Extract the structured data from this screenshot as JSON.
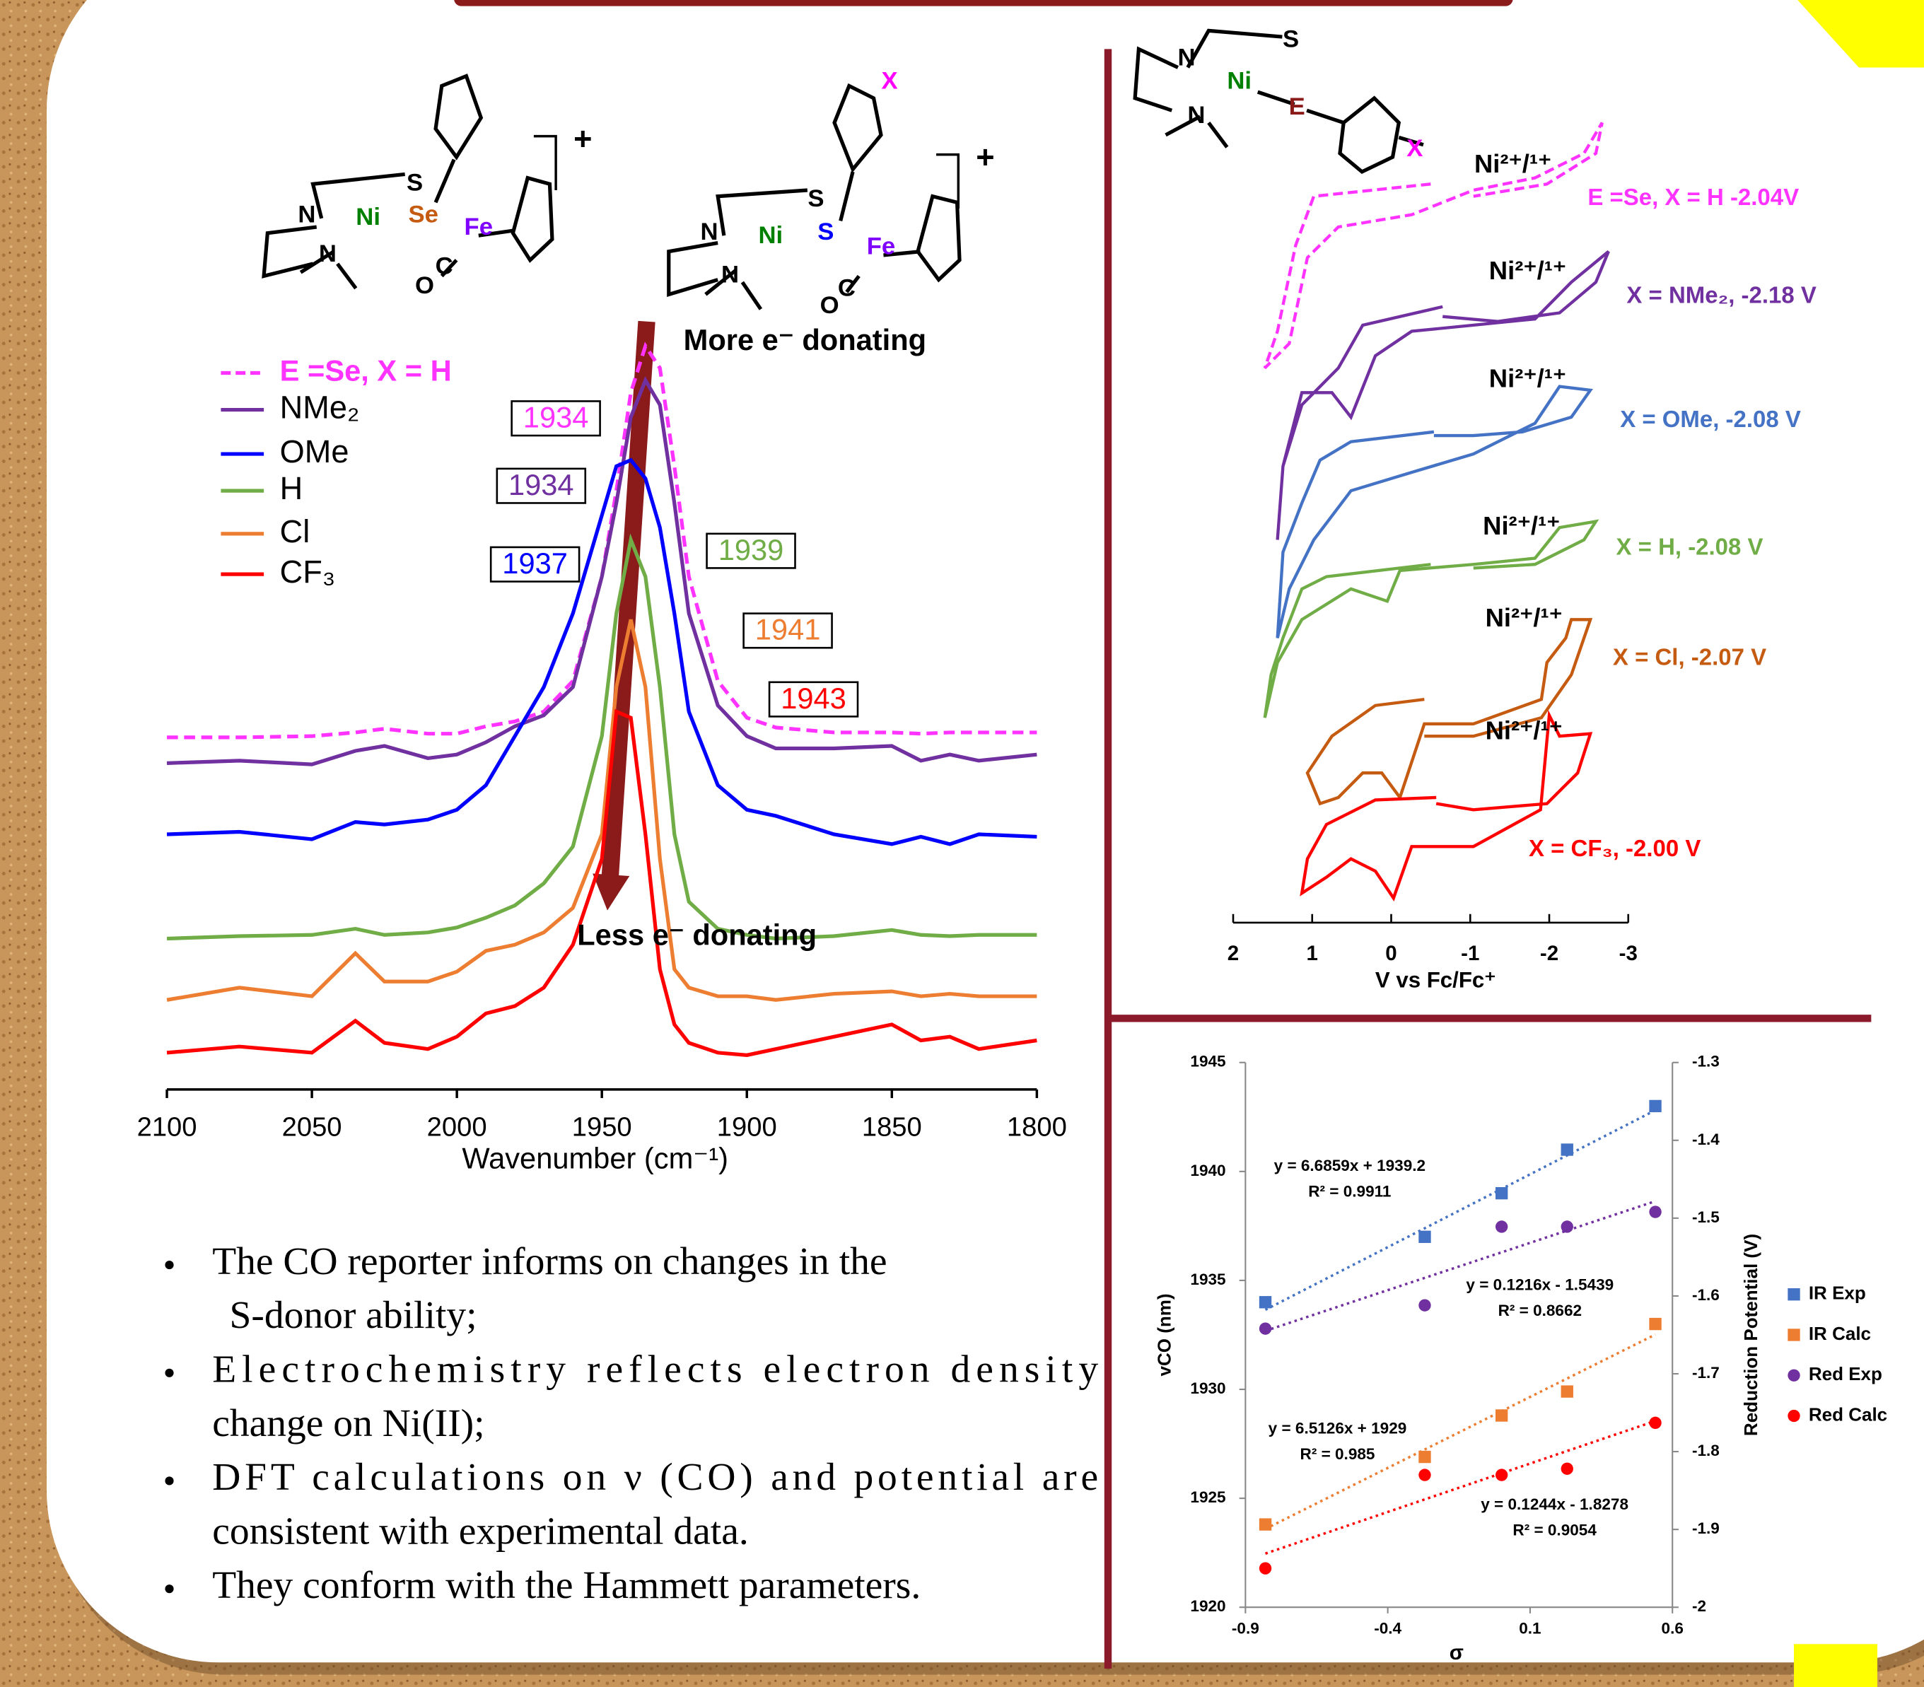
{
  "structures": [
    {
      "atoms": [
        "N",
        "Ni",
        "Se",
        "Fe",
        "S",
        "N",
        "C",
        "O"
      ],
      "charge": "+"
    },
    {
      "atoms": [
        "N",
        "Ni",
        "S",
        "Fe",
        "S",
        "N",
        "C",
        "O",
        "X"
      ],
      "charge": "+"
    },
    {
      "atoms": [
        "N",
        "Ni",
        "S",
        "E",
        "N",
        "X"
      ]
    }
  ],
  "bullets": [
    [
      "The CO reporter informs on changes in the",
      "S-donor ability;"
    ],
    [
      "Electrochemistry reflects electron density",
      "change on Ni(II);"
    ],
    [
      "DFT calculations on ν (CO) and potential are",
      "consistent with experimental data."
    ],
    [
      "They conform with  the Hammett parameters."
    ]
  ],
  "chart_data": [
    {
      "type": "line",
      "xlabel": "Wavenumber (cm⁻¹)",
      "annotations": [
        "More e⁻ donating",
        "Less e⁻ donating"
      ],
      "x": [
        2100,
        2075,
        2050,
        2035,
        2025,
        2010,
        2000,
        1990,
        1980,
        1970,
        1960,
        1950,
        1945,
        1940,
        1935,
        1930,
        1925,
        1920,
        1910,
        1900,
        1890,
        1870,
        1850,
        1840,
        1830,
        1820,
        1800
      ],
      "xlim": [
        2100,
        1800
      ],
      "xticks": [
        2100,
        2050,
        2000,
        1950,
        1900,
        1850,
        1800
      ],
      "ylim": [
        0,
        628
      ],
      "series": [
        {
          "name": "E =Se, X = H",
          "color": "#ff33ff",
          "dashed": true,
          "peak": 1934,
          "values": [
            287,
            287,
            288,
            291,
            294,
            290,
            290,
            296,
            300,
            308,
            333,
            418,
            488,
            568,
            606,
            588,
            508,
            418,
            333,
            303,
            295,
            291,
            291,
            290,
            291,
            291,
            291
          ]
        },
        {
          "name": "NMe₂",
          "color": "#7030a0",
          "peak": 1934,
          "values": [
            266,
            268,
            265,
            276,
            280,
            270,
            273,
            283,
            296,
            305,
            328,
            418,
            478,
            548,
            578,
            558,
            478,
            388,
            313,
            288,
            278,
            278,
            280,
            268,
            273,
            268,
            273
          ]
        },
        {
          "name": "OMe",
          "color": "#0000ff",
          "peak": 1937,
          "values": [
            208,
            210,
            204,
            218,
            216,
            220,
            228,
            248,
            288,
            328,
            388,
            468,
            508,
            513,
            498,
            458,
            388,
            308,
            248,
            228,
            223,
            208,
            200,
            206,
            200,
            208,
            206
          ]
        },
        {
          "name": "H",
          "color": "#70ad47",
          "peak": 1939,
          "values": [
            123,
            125,
            126,
            131,
            126,
            128,
            132,
            140,
            150,
            168,
            198,
            288,
            388,
            448,
            418,
            328,
            208,
            153,
            131,
            126,
            123,
            125,
            130,
            126,
            125,
            126,
            126
          ]
        },
        {
          "name": "Cl",
          "color": "#ed7d31",
          "peak": 1941,
          "values": [
            73,
            83,
            76,
            111,
            88,
            88,
            96,
            113,
            118,
            128,
            148,
            208,
            328,
            383,
            328,
            188,
            98,
            83,
            76,
            76,
            73,
            78,
            80,
            76,
            78,
            76,
            76
          ]
        },
        {
          "name": "CF₃",
          "color": "#ff0000",
          "peak": 1943,
          "values": [
            30,
            35,
            30,
            56,
            38,
            33,
            43,
            62,
            68,
            83,
            118,
            188,
            308,
            303,
            208,
            98,
            53,
            38,
            30,
            28,
            33,
            43,
            53,
            40,
            43,
            33,
            40
          ]
        }
      ]
    },
    {
      "type": "line",
      "xlabel": "V vs Fc/Fc⁺",
      "xlim": [
        2,
        -3
      ],
      "xticks": [
        2,
        1,
        0,
        -1,
        -2,
        -3
      ],
      "ylim": [
        0,
        670
      ],
      "series": [
        {
          "name": "E =Se, X = H -2.04V",
          "label": "Ni²⁺/¹⁺",
          "color": "#ff33ff",
          "dashed": true,
          "x": [
            -0.5,
            0.98,
            1.21,
            1.44,
            1.6,
            1.29,
            1.06,
            0.67,
            -0.26,
            -1.04,
            -1.82,
            -2.44,
            -2.67,
            -2.59,
            -1.97,
            -1.04
          ],
          "values": [
            610,
            600,
            560,
            490,
            460,
            480,
            550,
            575,
            585,
            605,
            615,
            635,
            660,
            635,
            610,
            600
          ]
        },
        {
          "name": "X = NMe₂, -2.18 V",
          "label": "Ni²⁺/¹⁺",
          "color": "#7030a0",
          "x": [
            -0.65,
            0.36,
            0.67,
            1.13,
            1.37,
            1.44,
            1.37,
            1.13,
            0.75,
            0.51,
            0.2,
            -0.26,
            -1.04,
            -1.82,
            -2.28,
            -2.75,
            -2.59,
            -2.13,
            -1.35,
            -0.65
          ],
          "values": [
            510,
            495,
            460,
            430,
            380,
            320,
            380,
            440,
            440,
            420,
            470,
            490,
            495,
            500,
            530,
            555,
            530,
            505,
            498,
            502
          ]
        },
        {
          "name": "X = OMe, -2.08 V",
          "label": "Ni²⁺/¹⁺",
          "color": "#4472c4",
          "x": [
            -0.54,
            0.51,
            0.9,
            1.13,
            1.37,
            1.44,
            1.29,
            0.98,
            0.51,
            -0.26,
            -1.04,
            -1.82,
            -2.13,
            -2.52,
            -2.28,
            -1.66,
            -1.04,
            -0.54
          ],
          "values": [
            408,
            400,
            385,
            350,
            310,
            240,
            280,
            320,
            360,
            375,
            390,
            415,
            445,
            442,
            420,
            408,
            405,
            405
          ]
        },
        {
          "name": "X = H, -2.08 V",
          "label": "Ni²⁺/¹⁺",
          "color": "#70ad47",
          "x": [
            -0.5,
            0.82,
            1.13,
            1.37,
            1.52,
            1.6,
            1.44,
            1.13,
            0.51,
            0.05,
            -0.11,
            -1.04,
            -1.82,
            -2.13,
            -2.59,
            -2.44,
            -1.82,
            -1.04
          ],
          "values": [
            300,
            290,
            280,
            240,
            210,
            175,
            220,
            255,
            280,
            270,
            295,
            300,
            305,
            330,
            335,
            320,
            300,
            297
          ]
        },
        {
          "name": "X = Cl, -2.07 V",
          "label": "Ni²⁺/¹⁺",
          "color": "#c55a11",
          "x": [
            -0.42,
            0.2,
            0.75,
            1.06,
            0.9,
            0.67,
            0.36,
            0.12,
            -0.11,
            -0.42,
            -1.04,
            -1.9,
            -1.97,
            -2.21,
            -2.28,
            -2.52,
            -2.28,
            -1.9,
            -1.04,
            -0.42
          ],
          "values": [
            190,
            185,
            160,
            130,
            105,
            110,
            130,
            130,
            110,
            170,
            170,
            190,
            220,
            240,
            255,
            255,
            210,
            175,
            160,
            160
          ]
        },
        {
          "name": "X = CF₃, -2.00 V",
          "label": "Ni²⁺/¹⁺",
          "color": "#ff0000",
          "x": [
            -0.57,
            0.2,
            0.82,
            1.06,
            1.13,
            0.82,
            0.51,
            0.2,
            -0.03,
            -0.26,
            -1.04,
            -1.89,
            -2.0,
            -2.13,
            -2.52,
            -2.36,
            -1.97,
            -1.04,
            -0.57
          ],
          "values": [
            110,
            108,
            88,
            60,
            32,
            45,
            60,
            50,
            28,
            70,
            70,
            100,
            177,
            160,
            162,
            130,
            105,
            100,
            105
          ]
        }
      ]
    },
    {
      "type": "scatter",
      "xlabel": "σ",
      "ylabel": "vCO (nm)",
      "y2label": "Reduction Potential (V)",
      "legend": "right",
      "x": [
        -0.83,
        -0.27,
        0,
        0.23,
        0.54
      ],
      "xlim": [
        -0.9,
        0.6
      ],
      "xticks": [
        -0.9,
        -0.4,
        0.1,
        0.6
      ],
      "ylim": [
        1920,
        1945
      ],
      "yticks": [
        1920,
        1925,
        1930,
        1935,
        1940,
        1945
      ],
      "y2lim": [
        -2,
        -1.3
      ],
      "y2ticks": [
        -2,
        -1.9,
        -1.8,
        -1.7,
        -1.6,
        -1.5,
        -1.4,
        -1.3
      ],
      "series": [
        {
          "name": "IR Exp",
          "color": "#4472c4",
          "marker": "square",
          "values": [
            1934,
            1937,
            1939,
            1941,
            1943
          ],
          "trendline": {
            "slope": 6.6859,
            "intercept": 1939.2,
            "equation": "y = 6.6859x + 1939.2",
            "r2": "R² = 0.9911"
          }
        },
        {
          "name": "IR Calc",
          "color": "#ed7d31",
          "marker": "square",
          "values": [
            1923.8,
            1926.9,
            1928.8,
            1929.9,
            1933
          ],
          "trendline": {
            "slope": 6.5126,
            "intercept": 1929,
            "equation": "y = 6.5126x + 1929",
            "r2": "R² = 0.985"
          }
        },
        {
          "name": "Red Exp",
          "color": "#7030a0",
          "marker": "circle",
          "axis": "y2",
          "values": [
            -1.642,
            -1.612,
            -1.511,
            -1.511,
            -1.492
          ],
          "trendline": {
            "slope": 0.1216,
            "intercept": -1.5439,
            "equation": "y = 0.1216x - 1.5439",
            "r2": "R² = 0.8662"
          }
        },
        {
          "name": "Red Calc",
          "color": "#ff0000",
          "marker": "circle",
          "axis": "y2",
          "values": [
            -1.95,
            -1.83,
            -1.83,
            -1.822,
            -1.763
          ],
          "trendline": {
            "slope": 0.1244,
            "intercept": -1.8278,
            "equation": "y = 0.1244x - 1.8278",
            "r2": "R² = 0.9054"
          }
        }
      ]
    }
  ]
}
